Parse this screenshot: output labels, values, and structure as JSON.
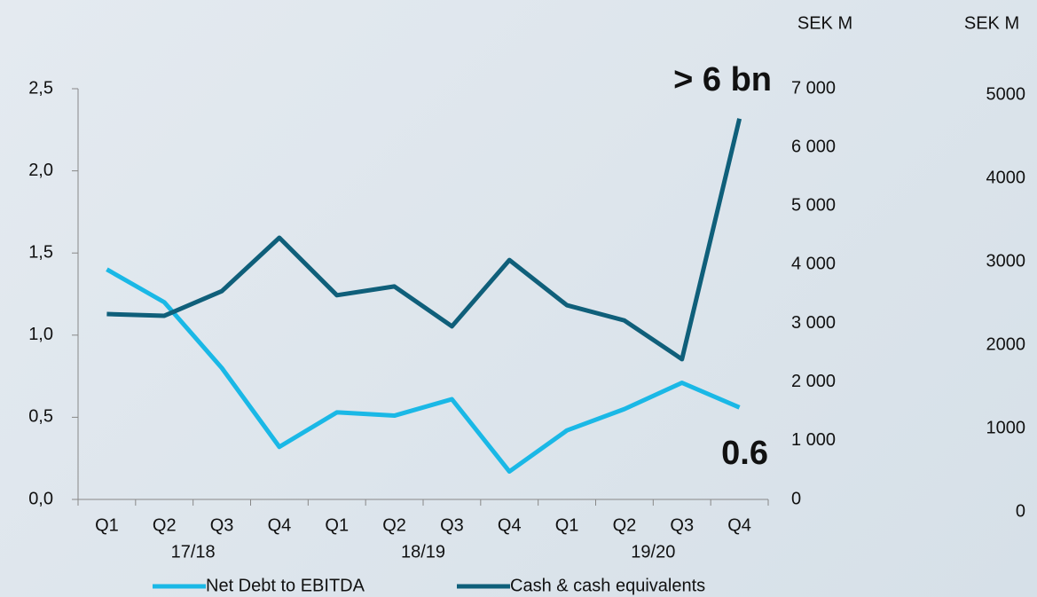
{
  "chart_data": {
    "type": "line",
    "categories": [
      "Q1",
      "Q2",
      "Q3",
      "Q4",
      "Q1",
      "Q2",
      "Q3",
      "Q4",
      "Q1",
      "Q2",
      "Q3",
      "Q4"
    ],
    "year_labels": [
      "17/18",
      "18/19",
      "19/20"
    ],
    "series": [
      {
        "name": "Net Debt to EBITDA",
        "color": "#1ab8e6",
        "values": [
          1.4,
          1.2,
          0.8,
          0.32,
          0.53,
          0.51,
          0.61,
          0.17,
          0.42,
          0.55,
          0.71,
          0.56
        ]
      },
      {
        "name": "Cash & cash equivalents",
        "color": "#0f5f7a",
        "axis": "y2",
        "values": [
          3160,
          3130,
          3550,
          4460,
          3480,
          3630,
          2950,
          4080,
          3310,
          3050,
          2390,
          6490
        ]
      }
    ],
    "ylim": [
      0,
      2.5
    ],
    "yticks": [
      {
        "value": 0,
        "label": "0,0"
      },
      {
        "value": 0.5,
        "label": "0,5"
      },
      {
        "value": 1,
        "label": "1,0"
      },
      {
        "value": 1.5,
        "label": "1,5"
      },
      {
        "value": 2,
        "label": "2,0"
      },
      {
        "value": 2.5,
        "label": "2,5"
      }
    ],
    "y2lim": [
      0,
      7000
    ],
    "y2ticks": [
      0,
      {
        "value": 1000,
        "label": "1 000"
      },
      {
        "value": 2000,
        "label": "2 000"
      },
      {
        "value": 3000,
        "label": "3 000"
      },
      {
        "value": 4000,
        "label": "4 000"
      },
      {
        "value": 5000,
        "label": "5 000"
      },
      {
        "value": 6000,
        "label": "6 000"
      },
      {
        "value": 7000,
        "label": "7 000"
      }
    ],
    "y2_unit": "SEK M",
    "y3lim": [
      0,
      5000
    ],
    "y3ticks": [
      0,
      1000,
      2000,
      3000,
      4000,
      5000
    ],
    "y3_unit": "SEK M",
    "annotations": [
      {
        "text": "> 6 bn",
        "color": "#0f5f7a"
      },
      {
        "text": "0.6",
        "color": "#1ab8e6"
      }
    ],
    "legend": "bottom"
  }
}
